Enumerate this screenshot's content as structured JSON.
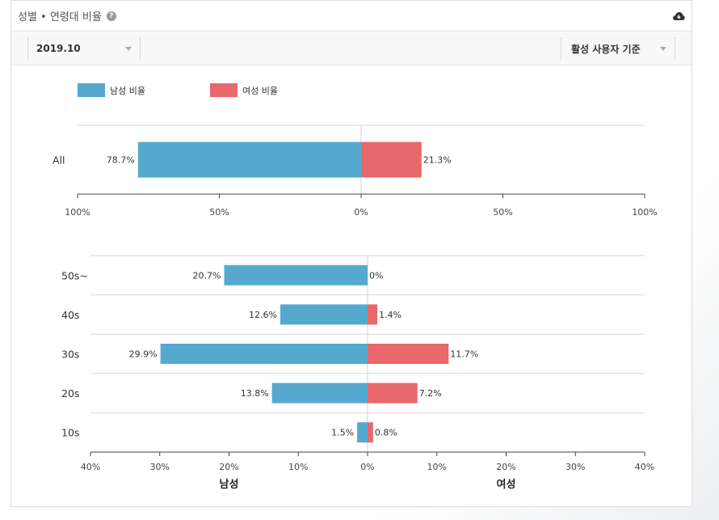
{
  "header": {
    "title": "성별 • 연령대 비율",
    "help_icon": "question-circle-icon",
    "download_icon": "cloud-download-icon"
  },
  "toolbar": {
    "date_value": "2019.10",
    "user_filter_value": "활성 사용자 기준"
  },
  "colors": {
    "male": "#55a9cf",
    "female": "#e8686b",
    "grid": "#d9d9d9",
    "axis": "#444444"
  },
  "chart_data": [
    {
      "type": "bar",
      "orientation": "horizontal-diverging",
      "legend": [
        "남성 비율",
        "여성 비율"
      ],
      "legend_position": "top-left",
      "categories": [
        "All"
      ],
      "series": [
        {
          "name": "남성 비율",
          "values": [
            78.7
          ]
        },
        {
          "name": "여성 비율",
          "values": [
            21.3
          ]
        }
      ],
      "data_labels": {
        "male": [
          "78.7%"
        ],
        "female": [
          "21.3%"
        ]
      },
      "xlim": [
        -100,
        100
      ],
      "tick_labels": [
        "100%",
        "50%",
        "0%",
        "50%",
        "100%"
      ],
      "grid": true
    },
    {
      "type": "bar",
      "orientation": "horizontal-diverging",
      "categories": [
        "50s~",
        "40s",
        "30s",
        "20s",
        "10s"
      ],
      "series": [
        {
          "name": "남성",
          "values": [
            20.7,
            12.6,
            29.9,
            13.8,
            1.5
          ]
        },
        {
          "name": "여성",
          "values": [
            0,
            1.4,
            11.7,
            7.2,
            0.8
          ]
        }
      ],
      "data_labels": {
        "male": [
          "20.7%",
          "12.6%",
          "29.9%",
          "13.8%",
          "1.5%"
        ],
        "female": [
          "0%",
          "1.4%",
          "11.7%",
          "7.2%",
          "0.8%"
        ]
      },
      "xlim": [
        -40,
        40
      ],
      "tick_labels": [
        "40%",
        "30%",
        "20%",
        "10%",
        "0%",
        "10%",
        "20%",
        "30%",
        "40%"
      ],
      "axis_titles": [
        "남성",
        "여성"
      ],
      "grid": true
    }
  ]
}
